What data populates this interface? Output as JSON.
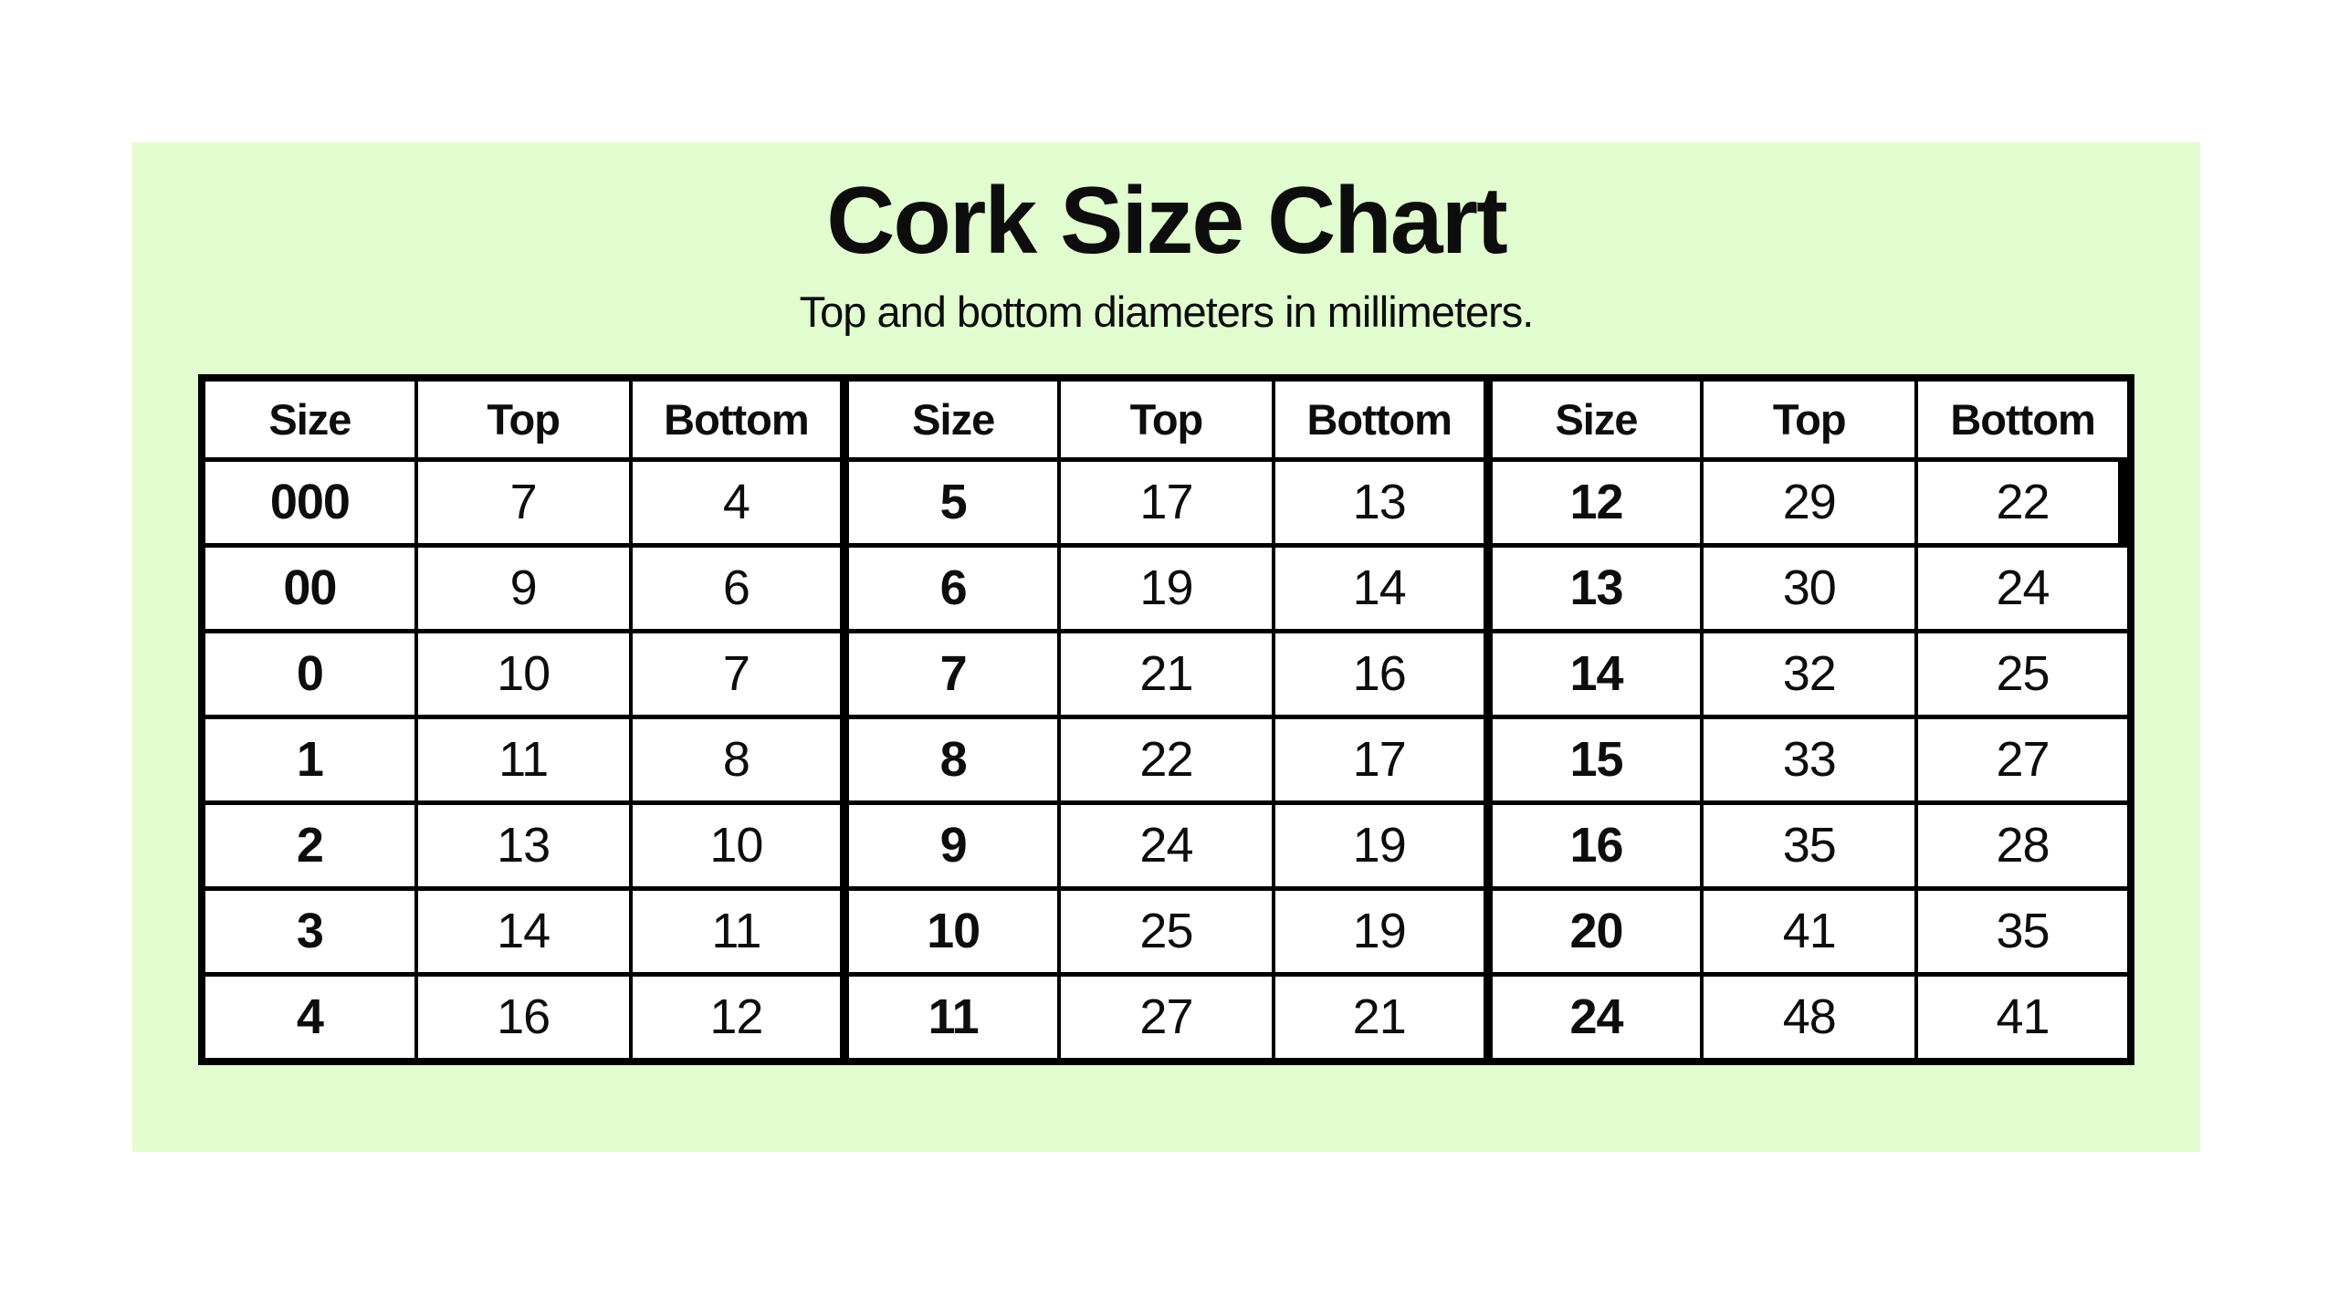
{
  "page": {
    "title": "Cork Size Chart",
    "subtitle": "Top and bottom diameters in millimeters.",
    "panel_color": "#e1fccf",
    "background_color": "#ffffff",
    "text_color": "#0d0d0d",
    "border_color": "#000000"
  },
  "chart_data": {
    "type": "table",
    "title": "Cork Size Chart",
    "subtitle": "Top and bottom diameters in millimeters.",
    "units": "millimeters",
    "column_headers": [
      "Size",
      "Top",
      "Bottom"
    ],
    "header_repeats": 3,
    "groups": [
      {
        "rows": [
          [
            "000",
            7,
            4
          ],
          [
            "00",
            9,
            6
          ],
          [
            "0",
            10,
            7
          ],
          [
            "1",
            11,
            8
          ],
          [
            "2",
            13,
            10
          ],
          [
            "3",
            14,
            11
          ],
          [
            "4",
            16,
            12
          ]
        ]
      },
      {
        "rows": [
          [
            "5",
            17,
            13
          ],
          [
            "6",
            19,
            14
          ],
          [
            "7",
            21,
            16
          ],
          [
            "8",
            22,
            17
          ],
          [
            "9",
            24,
            19
          ],
          [
            "10",
            25,
            19
          ],
          [
            "11",
            27,
            21
          ]
        ]
      },
      {
        "rows": [
          [
            "12",
            29,
            22
          ],
          [
            "13",
            30,
            24
          ],
          [
            "14",
            32,
            25
          ],
          [
            "15",
            33,
            27
          ],
          [
            "16",
            35,
            28
          ],
          [
            "20",
            41,
            35
          ],
          [
            "24",
            48,
            41
          ]
        ]
      }
    ]
  }
}
